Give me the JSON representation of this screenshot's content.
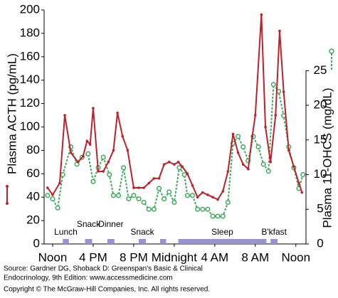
{
  "chart_data": {
    "type": "line",
    "y_label": "Plasma ACTH (pg/mL)",
    "y2_label": "Plasma 11-OHCS (mg/dL)",
    "xlim": [
      -0.84,
      25
    ],
    "xticks": [
      {
        "value": 0,
        "label": "Noon"
      },
      {
        "value": 4,
        "label": "4 PM"
      },
      {
        "value": 8,
        "label": "8 PM"
      },
      {
        "value": 12,
        "label": "Midnight"
      },
      {
        "value": 16,
        "label": "4 AM"
      },
      {
        "value": 20,
        "label": "8 AM"
      },
      {
        "value": 24,
        "label": "Noon"
      }
    ],
    "ylim": [
      0,
      200
    ],
    "yticks": [
      0,
      20,
      40,
      60,
      80,
      100,
      120,
      140,
      160,
      180,
      200
    ],
    "y2lim": [
      0,
      33.75
    ],
    "y2ticks": [
      0,
      5,
      10,
      15,
      20,
      25
    ],
    "series": [
      {
        "color": "#c0202a",
        "style": "solid",
        "x": [
          -0.5,
          0,
          0.7,
          1.2,
          1.8,
          2.5,
          3.0,
          3.4,
          3.7,
          4.0,
          4.5,
          5.0,
          5.5,
          6.0,
          6.4,
          6.9,
          7.4,
          8.0,
          8.5,
          9.0,
          9.5,
          10.0,
          10.5,
          11.0,
          11.5,
          12.0,
          12.4,
          12.8,
          13.3,
          13.8,
          14.3,
          14.8,
          15.3,
          15.8,
          16.3,
          16.8,
          17.3,
          17.8,
          18.3,
          18.8,
          19.3,
          19.7,
          20.0,
          20.6,
          21.0,
          21.5,
          22.0,
          22.4,
          22.8,
          23.3,
          23.8,
          24.3,
          24.6
        ],
        "values": [
          48,
          42,
          52,
          110,
          78,
          70,
          75,
          88,
          85,
          116,
          62,
          62,
          70,
          80,
          112,
          92,
          80,
          48,
          48,
          48,
          52,
          56,
          56,
          68,
          70,
          68,
          70,
          66,
          60,
          50,
          40,
          44,
          42,
          40,
          38,
          45,
          62,
          94,
          78,
          68,
          64,
          92,
          110,
          196,
          100,
          70,
          110,
          182,
          130,
          80,
          66,
          52,
          44
        ]
      },
      {
        "color": "#3daa5c",
        "style": "dashed",
        "axis": "y2",
        "x": [
          -0.5,
          0,
          0.5,
          1.0,
          1.8,
          2.4,
          2.9,
          3.5,
          4.0,
          4.5,
          5.0,
          5.6,
          6.0,
          6.5,
          7.0,
          7.5,
          8.0,
          8.5,
          9.0,
          9.5,
          10.0,
          10.5,
          11.0,
          11.5,
          12.0,
          12.5,
          13.0,
          13.3,
          13.8,
          14.3,
          14.8,
          15.3,
          15.8,
          16.3,
          16.8,
          17.3,
          17.8,
          18.3,
          18.8,
          19.3,
          19.8,
          20.3,
          20.8,
          21.3,
          21.8,
          22.3,
          22.8,
          23.3,
          23.8,
          24.3,
          24.7
        ],
        "values": [
          7,
          6.5,
          5.2,
          10,
          14,
          11.5,
          12.5,
          13,
          9,
          11,
          12.5,
          10,
          7,
          7,
          11,
          6.5,
          7,
          6.5,
          6,
          5,
          5,
          8,
          6.5,
          7.5,
          6,
          11,
          10,
          7,
          7,
          5,
          5,
          5,
          4,
          4,
          4,
          6,
          14.5,
          15.5,
          14,
          12,
          15.5,
          14,
          11.5,
          10.5,
          23,
          22,
          18.5,
          14,
          11,
          8,
          10
        ]
      }
    ],
    "events": [
      {
        "label": "Lunch",
        "start": 1.0,
        "end": 1.6
      },
      {
        "label": "Snack",
        "start": 3.2,
        "end": 3.9
      },
      {
        "label": "Dinner",
        "start": 5.4,
        "end": 6.1
      },
      {
        "label": "Snack",
        "start": 8.5,
        "end": 9.2
      },
      {
        "label": null,
        "start": 10.6,
        "end": 11.2
      },
      {
        "label": "Sleep",
        "start": 12.4,
        "end": 21.1
      },
      {
        "label": "B'kfast",
        "start": 21.5,
        "end": 22.2
      }
    ],
    "source": [
      "Source: Gardner DG, Shoback D: Greenspan's Basic & Clinical",
      "Endocrinology, 9th Edition: www.accessmedicine.com",
      "Copyright © The McGraw-Hill Companies, Inc. All rights reserved."
    ]
  }
}
